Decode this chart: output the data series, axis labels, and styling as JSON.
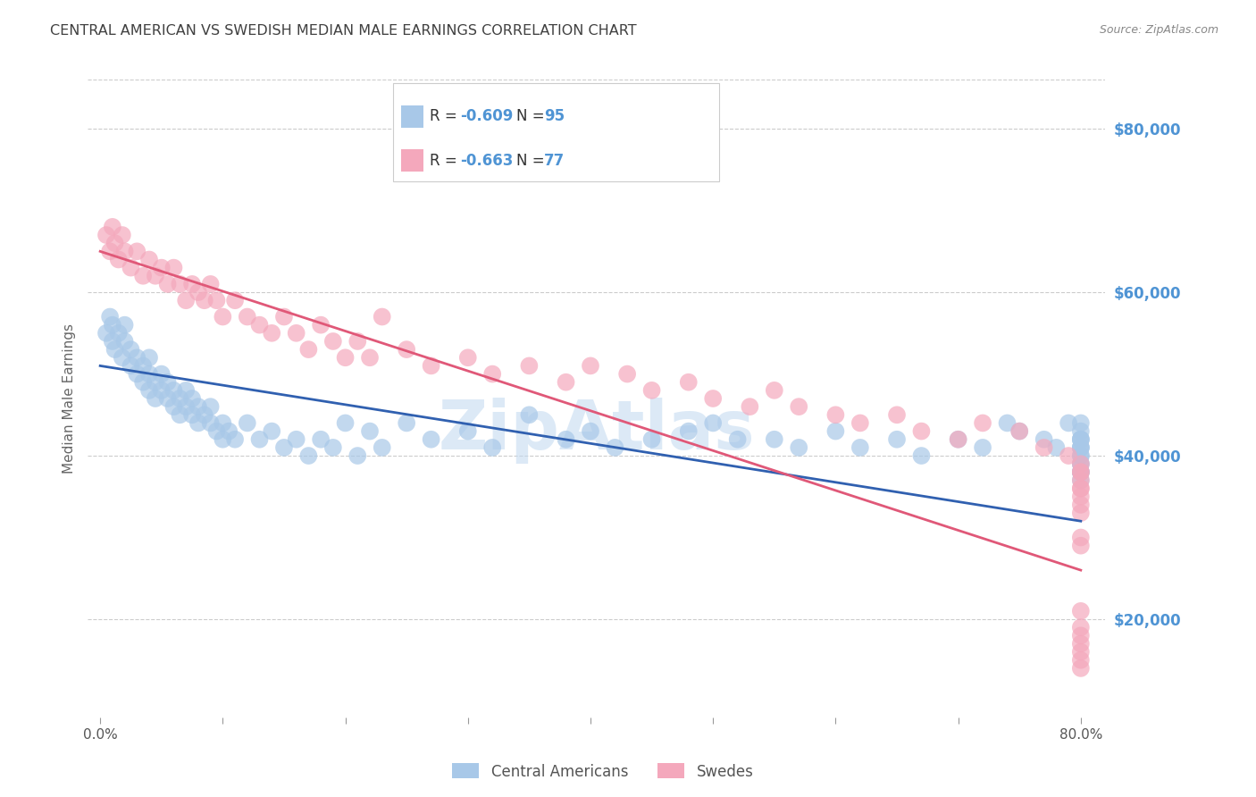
{
  "title": "CENTRAL AMERICAN VS SWEDISH MEDIAN MALE EARNINGS CORRELATION CHART",
  "source": "Source: ZipAtlas.com",
  "ylabel": "Median Male Earnings",
  "y_tick_labels": [
    "$20,000",
    "$40,000",
    "$60,000",
    "$80,000"
  ],
  "y_tick_values": [
    20000,
    40000,
    60000,
    80000
  ],
  "x_ticks": [
    0.0,
    0.1,
    0.2,
    0.3,
    0.4,
    0.5,
    0.6,
    0.7,
    0.8
  ],
  "xlim": [
    -0.01,
    0.82
  ],
  "ylim": [
    8000,
    86000
  ],
  "legend_blue_R": "-0.609",
  "legend_blue_N": "95",
  "legend_pink_R": "-0.663",
  "legend_pink_N": "77",
  "blue_color": "#a8c8e8",
  "pink_color": "#f4a8bc",
  "blue_line_color": "#3060b0",
  "pink_line_color": "#e05878",
  "axis_label_color": "#4f94d4",
  "title_color": "#404040",
  "grid_color": "#cccccc",
  "watermark_text": "ZipAtlas",
  "watermark_color": "#c0d8f0",
  "blue_scatter_x": [
    0.005,
    0.008,
    0.01,
    0.01,
    0.012,
    0.015,
    0.018,
    0.02,
    0.02,
    0.025,
    0.025,
    0.03,
    0.03,
    0.035,
    0.035,
    0.04,
    0.04,
    0.04,
    0.045,
    0.045,
    0.05,
    0.05,
    0.055,
    0.055,
    0.06,
    0.06,
    0.065,
    0.065,
    0.07,
    0.07,
    0.075,
    0.075,
    0.08,
    0.08,
    0.085,
    0.09,
    0.09,
    0.095,
    0.1,
    0.1,
    0.105,
    0.11,
    0.12,
    0.13,
    0.14,
    0.15,
    0.16,
    0.17,
    0.18,
    0.19,
    0.2,
    0.21,
    0.22,
    0.23,
    0.25,
    0.27,
    0.3,
    0.32,
    0.35,
    0.38,
    0.4,
    0.42,
    0.45,
    0.48,
    0.5,
    0.52,
    0.55,
    0.57,
    0.6,
    0.62,
    0.65,
    0.67,
    0.7,
    0.72,
    0.74,
    0.75,
    0.77,
    0.78,
    0.79,
    0.8,
    0.8,
    0.8,
    0.8,
    0.8,
    0.8,
    0.8,
    0.8,
    0.8,
    0.8,
    0.8,
    0.8,
    0.8,
    0.8,
    0.8,
    0.8
  ],
  "blue_scatter_y": [
    55000,
    57000,
    54000,
    56000,
    53000,
    55000,
    52000,
    54000,
    56000,
    51000,
    53000,
    50000,
    52000,
    49000,
    51000,
    48000,
    50000,
    52000,
    47000,
    49000,
    48000,
    50000,
    47000,
    49000,
    46000,
    48000,
    47000,
    45000,
    46000,
    48000,
    45000,
    47000,
    44000,
    46000,
    45000,
    44000,
    46000,
    43000,
    44000,
    42000,
    43000,
    42000,
    44000,
    42000,
    43000,
    41000,
    42000,
    40000,
    42000,
    41000,
    44000,
    40000,
    43000,
    41000,
    44000,
    42000,
    43000,
    41000,
    45000,
    42000,
    43000,
    41000,
    42000,
    43000,
    44000,
    42000,
    42000,
    41000,
    43000,
    41000,
    42000,
    40000,
    42000,
    41000,
    44000,
    43000,
    42000,
    41000,
    44000,
    42000,
    41000,
    43000,
    42000,
    38000,
    41000,
    40000,
    42000,
    39000,
    44000,
    38000,
    40000,
    39000,
    37000,
    41000,
    38000
  ],
  "pink_scatter_x": [
    0.005,
    0.008,
    0.01,
    0.012,
    0.015,
    0.018,
    0.02,
    0.025,
    0.03,
    0.035,
    0.04,
    0.045,
    0.05,
    0.055,
    0.06,
    0.065,
    0.07,
    0.075,
    0.08,
    0.085,
    0.09,
    0.095,
    0.1,
    0.11,
    0.12,
    0.13,
    0.14,
    0.15,
    0.16,
    0.17,
    0.18,
    0.19,
    0.2,
    0.21,
    0.22,
    0.23,
    0.25,
    0.27,
    0.3,
    0.32,
    0.35,
    0.38,
    0.4,
    0.43,
    0.45,
    0.48,
    0.5,
    0.53,
    0.55,
    0.57,
    0.6,
    0.62,
    0.65,
    0.67,
    0.7,
    0.72,
    0.75,
    0.77,
    0.79,
    0.8,
    0.8,
    0.8,
    0.8,
    0.8,
    0.8,
    0.8,
    0.8,
    0.8,
    0.8,
    0.8,
    0.8,
    0.8,
    0.8,
    0.8,
    0.8,
    0.8,
    0.8
  ],
  "pink_scatter_y": [
    67000,
    65000,
    68000,
    66000,
    64000,
    67000,
    65000,
    63000,
    65000,
    62000,
    64000,
    62000,
    63000,
    61000,
    63000,
    61000,
    59000,
    61000,
    60000,
    59000,
    61000,
    59000,
    57000,
    59000,
    57000,
    56000,
    55000,
    57000,
    55000,
    53000,
    56000,
    54000,
    52000,
    54000,
    52000,
    57000,
    53000,
    51000,
    52000,
    50000,
    51000,
    49000,
    51000,
    50000,
    48000,
    49000,
    47000,
    46000,
    48000,
    46000,
    45000,
    44000,
    45000,
    43000,
    42000,
    44000,
    43000,
    41000,
    40000,
    38000,
    39000,
    36000,
    37000,
    35000,
    38000,
    36000,
    33000,
    34000,
    30000,
    29000,
    21000,
    19000,
    16000,
    17000,
    14000,
    18000,
    15000
  ],
  "blue_trend_x": [
    0.0,
    0.8
  ],
  "blue_trend_y": [
    51000,
    32000
  ],
  "pink_trend_x": [
    0.0,
    0.8
  ],
  "pink_trend_y": [
    65000,
    26000
  ],
  "bottom_legend_labels": [
    "Central Americans",
    "Swedes"
  ],
  "figsize": [
    14.06,
    8.92
  ],
  "dpi": 100
}
